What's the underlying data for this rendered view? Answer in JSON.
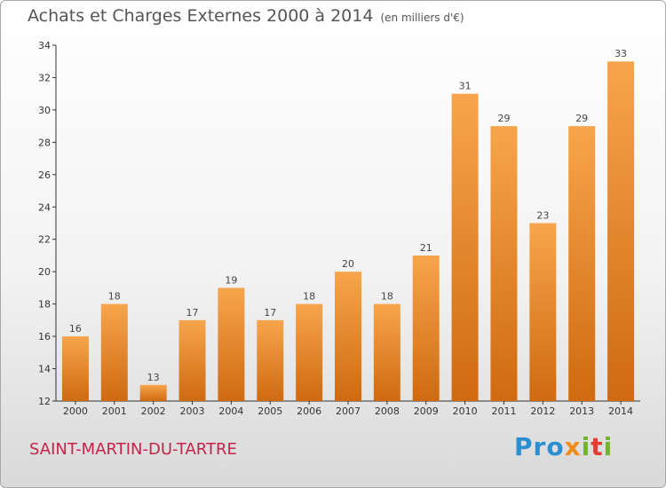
{
  "header": {
    "title": "Achats et Charges Externes 2000 à 2014",
    "subtitle": "(en milliers d'€)"
  },
  "footer": {
    "city": "SAINT-MARTIN-DU-TARTRE",
    "logo_text": "Proxiti"
  },
  "colors": {
    "bar_top": "#f7a54c",
    "bar_bottom": "#cf6a10",
    "city_text": "#c4234a"
  },
  "chart_data": {
    "type": "bar",
    "title": "Achats et Charges Externes 2000 à 2014",
    "subtitle": "(en milliers d'€)",
    "categories": [
      "2000",
      "2001",
      "2002",
      "2003",
      "2004",
      "2005",
      "2006",
      "2007",
      "2008",
      "2009",
      "2010",
      "2011",
      "2012",
      "2013",
      "2014"
    ],
    "values": [
      16,
      18,
      13,
      17,
      19,
      17,
      18,
      20,
      18,
      21,
      31,
      29,
      23,
      29,
      33
    ],
    "data_labels": [
      "16",
      "18",
      "13",
      "17",
      "19",
      "17",
      "18",
      "20",
      "18",
      "21",
      "31",
      "29",
      "23",
      "29",
      "33"
    ],
    "ylim": [
      12,
      34
    ],
    "yticks": [
      "12",
      "14",
      "16",
      "18",
      "20",
      "22",
      "24",
      "26",
      "28",
      "30",
      "32",
      "34"
    ],
    "grid": false,
    "xlabel": "",
    "ylabel": ""
  }
}
